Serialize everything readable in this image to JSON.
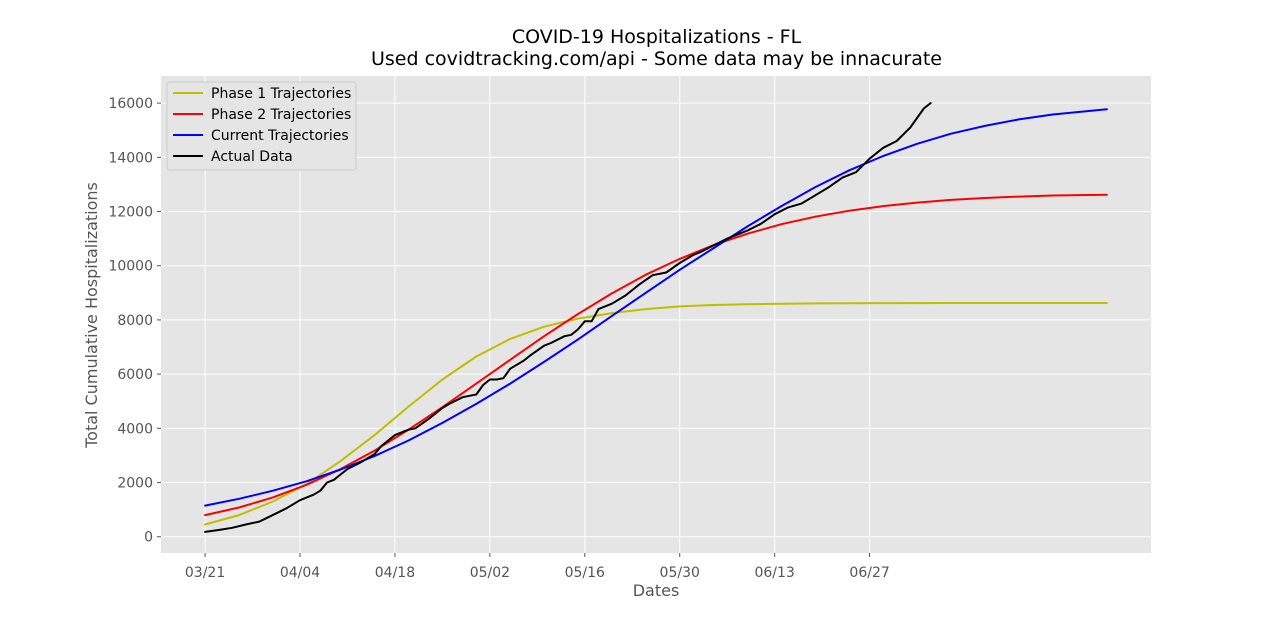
{
  "chart_data": {
    "type": "line",
    "title": "COVID-19 Hospitalizations - FL",
    "subtitle": "Used covidtracking.com/api - Some data may be innacurate",
    "xlabel": "Dates",
    "ylabel": "Total Cumulative Hospitalizations",
    "x_ticks": [
      "03/21",
      "04/04",
      "04/18",
      "05/02",
      "05/16",
      "05/30",
      "06/13",
      "06/27"
    ],
    "x_tick_days": [
      0,
      14,
      28,
      42,
      56,
      70,
      84,
      98
    ],
    "xlim_days": [
      -6.5,
      139.5
    ],
    "ylim": [
      -600,
      17000
    ],
    "y_ticks": [
      0,
      2000,
      4000,
      6000,
      8000,
      10000,
      12000,
      14000,
      16000
    ],
    "grid": true,
    "legend_position": "top-left",
    "series": [
      {
        "name": "Phase 1 Trajectories",
        "color": "#bfbf00",
        "x": [
          0,
          5,
          10,
          15,
          20,
          25,
          30,
          35,
          40,
          45,
          50,
          55,
          60,
          65,
          70,
          75,
          80,
          90,
          100,
          110,
          120,
          133
        ],
        "y": [
          450,
          800,
          1300,
          1950,
          2800,
          3750,
          4800,
          5800,
          6650,
          7300,
          7750,
          8050,
          8250,
          8400,
          8500,
          8550,
          8580,
          8610,
          8620,
          8625,
          8625,
          8625
        ]
      },
      {
        "name": "Phase 2 Trajectories",
        "color": "#ff0000",
        "x": [
          0,
          5,
          10,
          15,
          20,
          25,
          30,
          35,
          40,
          45,
          50,
          55,
          60,
          65,
          70,
          75,
          80,
          85,
          90,
          95,
          100,
          105,
          110,
          115,
          120,
          125,
          133
        ],
        "y": [
          800,
          1080,
          1450,
          1920,
          2500,
          3180,
          3950,
          4780,
          5650,
          6530,
          7400,
          8220,
          8980,
          9670,
          10250,
          10760,
          11180,
          11530,
          11810,
          12030,
          12200,
          12330,
          12430,
          12500,
          12550,
          12590,
          12620
        ]
      },
      {
        "name": "Current Trajectories",
        "color": "#0000ff",
        "x": [
          0,
          5,
          10,
          15,
          20,
          25,
          30,
          35,
          40,
          45,
          50,
          55,
          60,
          65,
          70,
          75,
          80,
          85,
          90,
          95,
          100,
          105,
          110,
          115,
          120,
          125,
          133
        ],
        "y": [
          1150,
          1400,
          1700,
          2050,
          2480,
          2980,
          3550,
          4200,
          4900,
          5650,
          6450,
          7280,
          8150,
          9000,
          9850,
          10650,
          11450,
          12200,
          12900,
          13520,
          14050,
          14500,
          14870,
          15160,
          15400,
          15580,
          15770
        ]
      },
      {
        "name": "Actual Data",
        "color": "#000000",
        "x": [
          0,
          2,
          4,
          6,
          8,
          9,
          12,
          14,
          15,
          16,
          17,
          18,
          19,
          20,
          21,
          23,
          24,
          25,
          26,
          28,
          30,
          31,
          33,
          35,
          36,
          38,
          39,
          40,
          41,
          42,
          43,
          44,
          45,
          47,
          48,
          50,
          51,
          53,
          54,
          55,
          56,
          57,
          58,
          60,
          62,
          64,
          66,
          68,
          70,
          72,
          73,
          75,
          77,
          79,
          80,
          82,
          84,
          86,
          88,
          90,
          92,
          94,
          96,
          98,
          100,
          102,
          104,
          106,
          107
        ],
        "y": [
          180,
          250,
          330,
          450,
          560,
          680,
          1050,
          1350,
          1450,
          1550,
          1700,
          2000,
          2100,
          2300,
          2500,
          2750,
          2900,
          3050,
          3350,
          3750,
          3950,
          4000,
          4350,
          4750,
          4900,
          5150,
          5200,
          5250,
          5600,
          5800,
          5800,
          5850,
          6200,
          6500,
          6700,
          7050,
          7150,
          7400,
          7450,
          7650,
          7950,
          7950,
          8400,
          8600,
          8900,
          9300,
          9650,
          9750,
          10100,
          10400,
          10500,
          10750,
          11000,
          11200,
          11300,
          11550,
          11900,
          12150,
          12300,
          12600,
          12900,
          13250,
          13450,
          13950,
          14350,
          14600,
          15100,
          15800,
          16000
        ]
      }
    ]
  }
}
